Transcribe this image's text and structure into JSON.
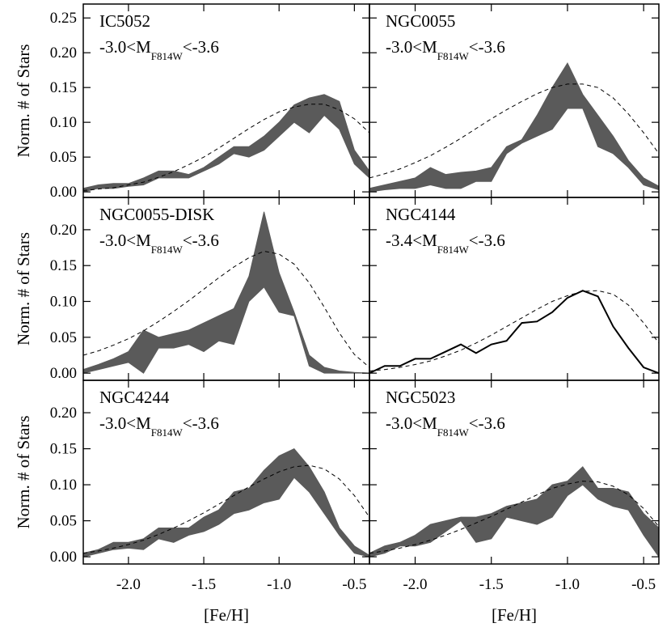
{
  "chart_data": [
    {
      "type": "area",
      "title": "IC5052",
      "annotation": [
        "-3.0<M",
        "F814W",
        "<-3.6"
      ],
      "color": "#5a5a5a",
      "ylabel": "Norm. # of Stars",
      "x": [
        -2.3,
        -2.2,
        -2.1,
        -2,
        -1.9,
        -1.8,
        -1.7,
        -1.6,
        -1.5,
        -1.4,
        -1.3,
        -1.2,
        -1.1,
        -1,
        -0.9,
        -0.8,
        -0.7,
        -0.6,
        -0.5,
        -0.4
      ],
      "low": [
        0,
        0.005,
        0.005,
        0.008,
        0.01,
        0.02,
        0.02,
        0.02,
        0.03,
        0.04,
        0.055,
        0.05,
        0.06,
        0.08,
        0.1,
        0.085,
        0.11,
        0.09,
        0.04,
        0.02
      ],
      "high": [
        0.005,
        0.01,
        0.012,
        0.012,
        0.02,
        0.03,
        0.03,
        0.025,
        0.035,
        0.05,
        0.065,
        0.065,
        0.08,
        0.1,
        0.125,
        0.135,
        0.14,
        0.13,
        0.06,
        0.03
      ],
      "model": [
        0.002,
        0.004,
        0.006,
        0.01,
        0.014,
        0.021,
        0.029,
        0.039,
        0.05,
        0.063,
        0.077,
        0.091,
        0.104,
        0.115,
        0.122,
        0.126,
        0.126,
        0.118,
        0.105,
        0.085
      ],
      "xlim": [
        -2.3,
        -0.4
      ],
      "ylim": [
        -0.008,
        0.27
      ],
      "xticks": [
        -2,
        -1.5,
        -1,
        -0.5
      ],
      "yticks": [
        {
          "value": 0,
          "label": "0.00"
        },
        0.05,
        {
          "value": 0.1,
          "label": "0.10"
        },
        0.15,
        {
          "value": 0.2,
          "label": "0.20"
        },
        0.25
      ]
    },
    {
      "type": "area",
      "title": "NGC0055",
      "annotation": [
        "-3.0<M",
        "F814W",
        "<-3.6"
      ],
      "color": "#5a5a5a",
      "x": [
        -2.3,
        -2.2,
        -2.1,
        -2,
        -1.9,
        -1.8,
        -1.7,
        -1.6,
        -1.5,
        -1.4,
        -1.3,
        -1.2,
        -1.1,
        -1,
        -0.9,
        -0.8,
        -0.7,
        -0.6,
        -0.5,
        -0.4
      ],
      "low": [
        0,
        0.003,
        0.005,
        0.005,
        0.01,
        0.005,
        0.005,
        0.015,
        0.015,
        0.055,
        0.07,
        0.08,
        0.09,
        0.12,
        0.12,
        0.065,
        0.055,
        0.035,
        0.01,
        0.003
      ],
      "high": [
        0.005,
        0.01,
        0.015,
        0.02,
        0.035,
        0.025,
        0.028,
        0.03,
        0.035,
        0.065,
        0.075,
        0.11,
        0.15,
        0.185,
        0.14,
        0.11,
        0.08,
        0.045,
        0.02,
        0.008
      ],
      "model": [
        0.02,
        0.026,
        0.033,
        0.042,
        0.052,
        0.064,
        0.077,
        0.091,
        0.105,
        0.118,
        0.13,
        0.141,
        0.15,
        0.155,
        0.155,
        0.15,
        0.135,
        0.112,
        0.085,
        0.055
      ],
      "xlim": [
        -2.3,
        -0.4
      ],
      "ylim": [
        -0.008,
        0.27
      ],
      "xticks": [
        -2,
        -1.5,
        -1,
        -0.5
      ],
      "yticks": [
        0,
        0.05,
        0.1,
        0.15,
        0.2,
        0.25
      ]
    },
    {
      "type": "area",
      "title": "NGC0055-DISK",
      "annotation": [
        "-3.0<M",
        "F814W",
        "<-3.6"
      ],
      "color": "#5a5a5a",
      "ylabel": "Norm. # of Stars",
      "x": [
        -2.3,
        -2.2,
        -2.1,
        -2,
        -1.9,
        -1.8,
        -1.7,
        -1.6,
        -1.5,
        -1.4,
        -1.3,
        -1.2,
        -1.1,
        -1,
        -0.9,
        -0.8,
        -0.7,
        -0.6,
        -0.5,
        -0.4
      ],
      "low": [
        0,
        0.005,
        0.01,
        0.015,
        0,
        0.035,
        0.035,
        0.04,
        0.03,
        0.045,
        0.04,
        0.1,
        0.12,
        0.085,
        0.08,
        0.01,
        0,
        0,
        0,
        0
      ],
      "high": [
        0.005,
        0.012,
        0.02,
        0.03,
        0.06,
        0.05,
        0.055,
        0.06,
        0.07,
        0.08,
        0.09,
        0.135,
        0.225,
        0.14,
        0.085,
        0.025,
        0.008,
        0.003,
        0.001,
        0
      ],
      "model": [
        0.025,
        0.031,
        0.039,
        0.048,
        0.059,
        0.072,
        0.086,
        0.101,
        0.117,
        0.133,
        0.148,
        0.161,
        0.17,
        0.166,
        0.152,
        0.126,
        0.092,
        0.056,
        0.026,
        0.008
      ],
      "xlim": [
        -2.3,
        -0.4
      ],
      "ylim": [
        -0.01,
        0.245
      ],
      "xticks": [
        -2,
        -1.5,
        -1,
        -0.5
      ],
      "yticks": [
        {
          "value": 0,
          "label": "0.00"
        },
        0.05,
        {
          "value": 0.1,
          "label": "0.10"
        },
        0.15,
        {
          "value": 0.2,
          "label": "0.20"
        }
      ]
    },
    {
      "type": "line",
      "title": "NGC4144",
      "annotation": [
        "-3.4<M",
        "F814W",
        "<-3.6"
      ],
      "color": "#000000",
      "x": [
        -2.3,
        -2.2,
        -2.1,
        -2,
        -1.9,
        -1.8,
        -1.7,
        -1.6,
        -1.5,
        -1.4,
        -1.3,
        -1.2,
        -1.1,
        -1,
        -0.9,
        -0.8,
        -0.7,
        -0.6,
        -0.5,
        -0.4
      ],
      "values": [
        0,
        0.01,
        0.01,
        0.02,
        0.02,
        0.03,
        0.04,
        0.028,
        0.04,
        0.045,
        0.07,
        0.072,
        0.085,
        0.105,
        0.115,
        0.107,
        0.065,
        0.035,
        0.008,
        0
      ],
      "model": [
        0.003,
        0.005,
        0.008,
        0.012,
        0.017,
        0.024,
        0.032,
        0.042,
        0.053,
        0.065,
        0.077,
        0.089,
        0.1,
        0.108,
        0.114,
        0.115,
        0.11,
        0.095,
        0.07,
        0.042
      ],
      "xlim": [
        -2.3,
        -0.4
      ],
      "ylim": [
        -0.01,
        0.245
      ],
      "xticks": [
        -2,
        -1.5,
        -1,
        -0.5
      ],
      "yticks": [
        0,
        0.05,
        0.1,
        0.15,
        0.2
      ]
    },
    {
      "type": "area",
      "title": "NGC4244",
      "annotation": [
        "-3.0<M",
        "F814W",
        "<-3.6"
      ],
      "color": "#5a5a5a",
      "ylabel": "Norm. # of Stars",
      "xlabel": "[Fe/H]",
      "x": [
        -2.3,
        -2.2,
        -2.1,
        -2,
        -1.9,
        -1.8,
        -1.7,
        -1.6,
        -1.5,
        -1.4,
        -1.3,
        -1.2,
        -1.1,
        -1,
        -0.9,
        -0.8,
        -0.7,
        -0.6,
        -0.5,
        -0.4
      ],
      "low": [
        0,
        0.005,
        0.01,
        0.012,
        0.01,
        0.025,
        0.02,
        0.03,
        0.035,
        0.045,
        0.06,
        0.065,
        0.075,
        0.08,
        0.11,
        0.09,
        0.06,
        0.03,
        0.005,
        0
      ],
      "high": [
        0.005,
        0.01,
        0.02,
        0.02,
        0.025,
        0.04,
        0.04,
        0.04,
        0.055,
        0.065,
        0.09,
        0.095,
        0.12,
        0.14,
        0.15,
        0.125,
        0.09,
        0.04,
        0.015,
        0.002
      ],
      "model": [
        0.005,
        0.008,
        0.012,
        0.017,
        0.023,
        0.031,
        0.04,
        0.05,
        0.061,
        0.073,
        0.085,
        0.097,
        0.108,
        0.118,
        0.125,
        0.127,
        0.122,
        0.108,
        0.085,
        0.055
      ],
      "xlim": [
        -2.3,
        -0.4
      ],
      "ylim": [
        -0.01,
        0.245
      ],
      "xticks": [
        {
          "value": -2,
          "label": "-2.0"
        },
        -1.5,
        {
          "value": -1,
          "label": "-1.0"
        },
        -0.5
      ],
      "yticks": [
        {
          "value": 0,
          "label": "0.00"
        },
        0.05,
        {
          "value": 0.1,
          "label": "0.10"
        },
        0.15,
        {
          "value": 0.2,
          "label": "0.20"
        }
      ]
    },
    {
      "type": "area",
      "title": "NGC5023",
      "annotation": [
        "-3.0<M",
        "F814W",
        "<-3.6"
      ],
      "color": "#5a5a5a",
      "xlabel": "[Fe/H]",
      "x": [
        -2.3,
        -2.2,
        -2.1,
        -2,
        -1.9,
        -1.8,
        -1.7,
        -1.6,
        -1.5,
        -1.4,
        -1.3,
        -1.2,
        -1.1,
        -1,
        -0.9,
        -0.8,
        -0.7,
        -0.6,
        -0.5,
        -0.4
      ],
      "low": [
        0,
        0.005,
        0.015,
        0.015,
        0.02,
        0.035,
        0.05,
        0.02,
        0.025,
        0.055,
        0.05,
        0.045,
        0.055,
        0.085,
        0.1,
        0.08,
        0.07,
        0.065,
        0.03,
        0
      ],
      "high": [
        0.005,
        0.015,
        0.02,
        0.03,
        0.045,
        0.05,
        0.055,
        0.055,
        0.06,
        0.07,
        0.075,
        0.08,
        0.1,
        0.105,
        0.125,
        0.095,
        0.095,
        0.09,
        0.06,
        0.04
      ],
      "model": [
        0.005,
        0.008,
        0.012,
        0.017,
        0.023,
        0.03,
        0.038,
        0.047,
        0.056,
        0.066,
        0.076,
        0.086,
        0.095,
        0.101,
        0.105,
        0.104,
        0.098,
        0.086,
        0.067,
        0.042
      ],
      "xlim": [
        -2.3,
        -0.4
      ],
      "ylim": [
        -0.01,
        0.245
      ],
      "xticks": [
        {
          "value": -2,
          "label": "-2.0"
        },
        -1.5,
        {
          "value": -1,
          "label": "-1.0"
        },
        -0.5
      ],
      "yticks": [
        0,
        0.05,
        0.1,
        0.15,
        0.2
      ]
    }
  ]
}
